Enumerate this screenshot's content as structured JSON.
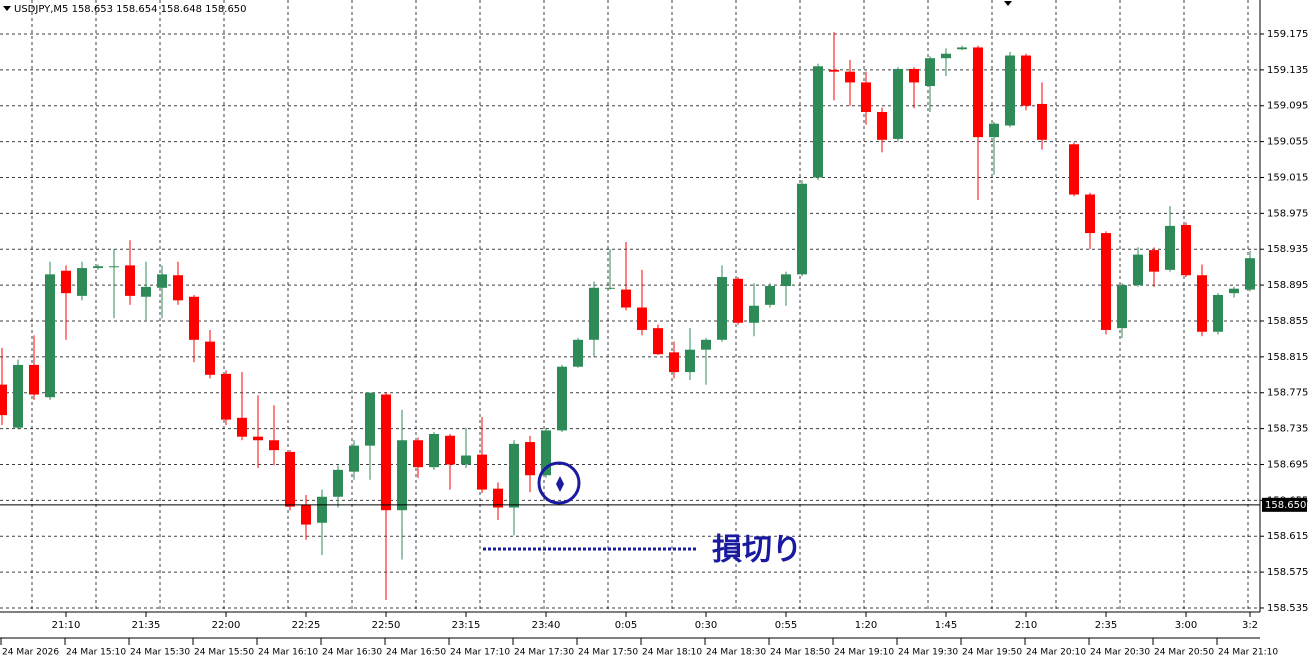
{
  "chart_data": {
    "type": "candlestick",
    "title": "USDJPY,M5  158.653 158.654 158.648 158.650",
    "categories": [
      null,
      null,
      null,
      null,
      "21:10",
      null,
      null,
      null,
      null,
      "21:35",
      null,
      null,
      null,
      null,
      "22:00",
      null,
      null,
      null,
      null,
      "22:25",
      null,
      null,
      null,
      null,
      "22:50",
      null,
      null,
      null,
      null,
      "23:15",
      null,
      null,
      null,
      null,
      "23:40",
      null,
      null,
      null,
      null,
      "0:05",
      null,
      null,
      null,
      null,
      "0:30",
      null,
      null,
      null,
      null,
      "0:55",
      null,
      null,
      null,
      null,
      "1:20",
      null,
      null,
      null,
      null,
      "1:45",
      null,
      null,
      null,
      null,
      "2:10",
      null,
      null,
      null,
      null,
      "2:35",
      null,
      null,
      null,
      null,
      "3:00",
      null,
      null,
      null,
      "3:2"
    ],
    "open": [
      158.784,
      158.736,
      158.806,
      158.77,
      158.911,
      158.883,
      158.914,
      158.915,
      158.917,
      158.882,
      158.892,
      158.906,
      158.882,
      158.832,
      158.796,
      158.747,
      158.726,
      158.722,
      158.709,
      158.65,
      158.63,
      158.659,
      158.687,
      158.716,
      158.773,
      158.644,
      158.722,
      158.692,
      158.727,
      158.695,
      158.706,
      158.668,
      158.647,
      158.72,
      158.683,
      158.733,
      158.804,
      158.834,
      158.891,
      158.89,
      158.87,
      158.847,
      158.82,
      158.798,
      158.823,
      158.834,
      158.902,
      158.853,
      158.873,
      158.894,
      158.907,
      159.015,
      159.135,
      159.133,
      159.121,
      159.088,
      159.058,
      159.136,
      159.117,
      159.148,
      159.158,
      159.16,
      159.06,
      159.073,
      159.151,
      159.097,
      null,
      159.052,
      158.996,
      158.953,
      158.847,
      158.895,
      158.934,
      158.912,
      158.962,
      158.906,
      158.843,
      158.886,
      158.89
    ],
    "high": [
      158.825,
      158.812,
      158.839,
      158.921,
      158.917,
      158.921,
      158.918,
      158.935,
      158.945,
      158.921,
      158.917,
      158.921,
      158.884,
      158.845,
      158.8,
      158.798,
      158.772,
      158.761,
      158.711,
      158.661,
      158.667,
      158.694,
      158.722,
      158.775,
      158.776,
      158.756,
      158.725,
      158.731,
      158.729,
      158.736,
      158.748,
      158.675,
      158.722,
      158.727,
      158.736,
      158.806,
      158.836,
      158.899,
      158.935,
      158.943,
      158.912,
      158.851,
      158.832,
      158.847,
      158.836,
      158.917,
      158.904,
      158.897,
      158.897,
      158.91,
      159.012,
      159.142,
      159.177,
      159.146,
      159.133,
      159.093,
      159.138,
      159.138,
      159.15,
      159.159,
      159.162,
      159.162,
      159.077,
      159.155,
      159.153,
      159.121,
      null,
      159.054,
      158.998,
      158.955,
      158.897,
      158.937,
      158.937,
      158.983,
      158.965,
      158.918,
      158.886,
      158.893,
      158.933
    ],
    "low": [
      158.739,
      158.734,
      158.767,
      158.767,
      158.834,
      158.878,
      158.912,
      158.858,
      158.873,
      158.856,
      158.858,
      158.873,
      158.809,
      158.791,
      158.739,
      158.722,
      158.691,
      158.694,
      158.644,
      158.611,
      158.594,
      158.647,
      158.678,
      158.678,
      158.544,
      158.589,
      158.68,
      158.689,
      158.667,
      158.691,
      158.663,
      158.633,
      158.616,
      158.664,
      158.68,
      158.731,
      158.803,
      158.815,
      158.89,
      158.867,
      158.839,
      158.817,
      158.791,
      158.789,
      158.784,
      158.832,
      158.851,
      158.838,
      158.87,
      158.872,
      158.905,
      159.012,
      159.101,
      159.095,
      159.074,
      159.043,
      159.055,
      159.092,
      159.088,
      159.128,
      159.157,
      158.99,
      159.018,
      159.071,
      159.09,
      159.046,
      null,
      158.994,
      158.935,
      158.84,
      158.836,
      158.893,
      158.893,
      158.91,
      158.904,
      158.838,
      158.84,
      158.881,
      158.888
    ],
    "close": [
      158.75,
      158.806,
      158.773,
      158.907,
      158.886,
      158.914,
      158.916,
      158.916,
      158.883,
      158.893,
      158.907,
      158.878,
      158.834,
      158.795,
      158.745,
      158.726,
      158.722,
      158.711,
      158.648,
      158.628,
      158.659,
      158.689,
      158.716,
      158.775,
      158.644,
      158.722,
      158.692,
      158.729,
      158.695,
      158.705,
      158.667,
      158.647,
      158.718,
      158.683,
      158.733,
      158.804,
      158.834,
      158.892,
      158.892,
      158.87,
      158.845,
      158.818,
      158.798,
      158.823,
      158.834,
      158.904,
      158.853,
      158.872,
      158.894,
      158.907,
      159.008,
      159.139,
      159.133,
      159.121,
      159.088,
      159.057,
      159.136,
      159.121,
      159.148,
      159.153,
      159.16,
      159.06,
      159.075,
      159.151,
      159.095,
      159.057,
      null,
      158.996,
      158.953,
      158.845,
      158.895,
      158.929,
      158.91,
      158.961,
      158.906,
      158.843,
      158.884,
      158.891,
      158.925
    ],
    "up_color": "#2e8b57",
    "down_color": "#ff0000",
    "ylim": [
      158.5305,
      159.2129
    ],
    "yticks": [
      159.175,
      159.135,
      159.095,
      159.055,
      159.015,
      158.975,
      158.935,
      158.895,
      158.855,
      158.815,
      158.775,
      158.735,
      158.695,
      158.655,
      158.615,
      158.575,
      158.535
    ],
    "grid": true,
    "last_price": {
      "value": 158.65,
      "label": "158.650"
    },
    "date_labels": [
      "24 Mar 2026",
      "24 Mar 15:10",
      "24 Mar 15:30",
      "24 Mar 15:50",
      "24 Mar 16:10",
      "24 Mar 16:30",
      "24 Mar 16:50",
      "24 Mar 17:10",
      "24 Mar 17:30",
      "24 Mar 17:50",
      "24 Mar 18:10",
      "24 Mar 18:30",
      "24 Mar 18:50",
      "24 Mar 19:10",
      "24 Mar 19:30",
      "24 Mar 19:50",
      "24 Mar 20:10",
      "24 Mar 20:30",
      "24 Mar 20:50",
      "24 Mar 21:10"
    ],
    "annotation": "損切り"
  }
}
